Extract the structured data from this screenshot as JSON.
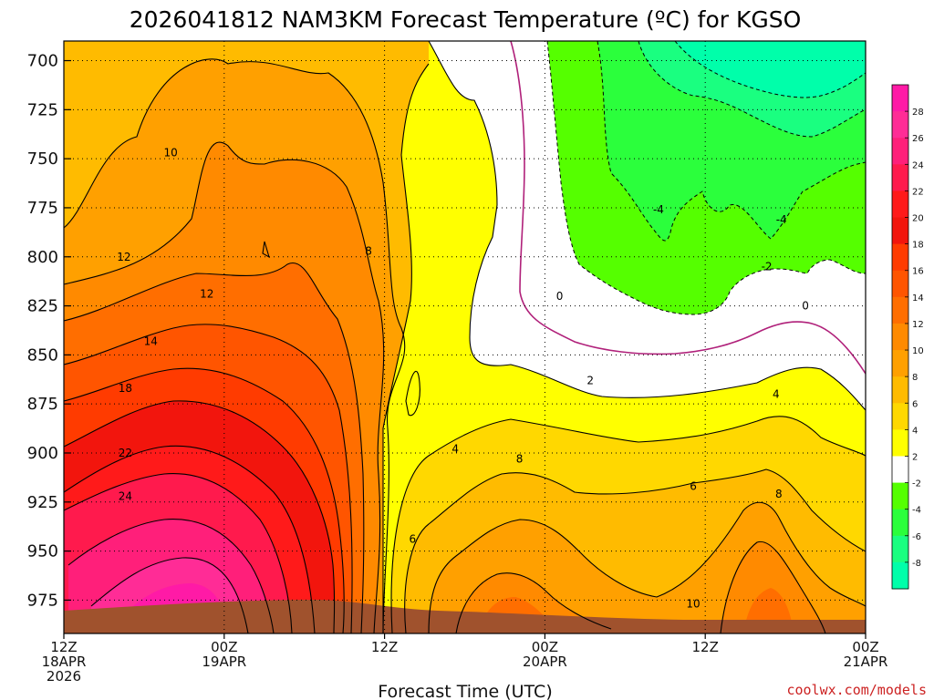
{
  "chart_data": {
    "type": "heatmap",
    "title": "2026041812 NAM3KM Forecast Temperature (ºC) for KGSO",
    "xlabel": "Forecast Time (UTC)",
    "ylabel": "",
    "credit": "coolwx.com/models",
    "credit_color": "#cc2222",
    "y_axis": {
      "unit": "hPa",
      "range": [
        690,
        992
      ],
      "ticks": [
        "700",
        "725",
        "750",
        "775",
        "800",
        "825",
        "850",
        "875",
        "900",
        "925",
        "950",
        "975"
      ]
    },
    "x_axis": {
      "unit": "forecast hours",
      "range": [
        0,
        60
      ],
      "ticks": [
        {
          "hour": 0,
          "lines": [
            "12Z",
            "18APR",
            "2026"
          ]
        },
        {
          "hour": 12,
          "lines": [
            "00Z",
            "19APR"
          ]
        },
        {
          "hour": 24,
          "lines": [
            "12Z"
          ]
        },
        {
          "hour": 36,
          "lines": [
            "00Z",
            "20APR"
          ]
        },
        {
          "hour": 48,
          "lines": [
            "12Z"
          ]
        },
        {
          "hour": 60,
          "lines": [
            "00Z",
            "21APR"
          ]
        }
      ]
    },
    "colorbar": {
      "labels": [
        "28",
        "26",
        "24",
        "22",
        "20",
        "18",
        "16",
        "14",
        "12",
        "10",
        "8",
        "6",
        "4",
        "2",
        "-2",
        "-4",
        "-6",
        "-8"
      ],
      "bands": [
        {
          "range": [
            28,
            30
          ],
          "color": "#ff1aa6"
        },
        {
          "range": [
            26,
            28
          ],
          "color": "#ff2c96"
        },
        {
          "range": [
            24,
            26
          ],
          "color": "#ff1f7a"
        },
        {
          "range": [
            22,
            24
          ],
          "color": "#ff1a4d"
        },
        {
          "range": [
            20,
            22
          ],
          "color": "#ff1a1a"
        },
        {
          "range": [
            18,
            20
          ],
          "color": "#f2150d"
        },
        {
          "range": [
            16,
            18
          ],
          "color": "#ff3b00"
        },
        {
          "range": [
            14,
            16
          ],
          "color": "#ff5500"
        },
        {
          "range": [
            12,
            14
          ],
          "color": "#ff6e00"
        },
        {
          "range": [
            10,
            12
          ],
          "color": "#ff8a00"
        },
        {
          "range": [
            8,
            10
          ],
          "color": "#ffa000"
        },
        {
          "range": [
            6,
            8
          ],
          "color": "#ffbb00"
        },
        {
          "range": [
            4,
            6
          ],
          "color": "#ffd800"
        },
        {
          "range": [
            2,
            4
          ],
          "color": "#ffff00"
        },
        {
          "range": [
            -2,
            2
          ],
          "color": "#ffffff"
        },
        {
          "range": [
            -4,
            -2
          ],
          "color": "#55ff00"
        },
        {
          "range": [
            -6,
            -4
          ],
          "color": "#2bff3c"
        },
        {
          "range": [
            -8,
            -6
          ],
          "color": "#1aff80"
        },
        {
          "range": [
            -10,
            -8
          ],
          "color": "#00ffaa"
        }
      ]
    },
    "contour_labels": [
      {
        "text": "10",
        "hour": 8,
        "p": 747
      },
      {
        "text": "12",
        "hour": 4.5,
        "p": 800
      },
      {
        "text": "12",
        "hour": 10.7,
        "p": 819
      },
      {
        "text": "14",
        "hour": 6.5,
        "p": 843
      },
      {
        "text": "18",
        "hour": 4.6,
        "p": 867
      },
      {
        "text": "22",
        "hour": 4.6,
        "p": 900
      },
      {
        "text": "24",
        "hour": 4.6,
        "p": 922
      },
      {
        "text": "8",
        "hour": 22.8,
        "p": 797
      },
      {
        "text": "4",
        "hour": 29.3,
        "p": 898
      },
      {
        "text": "6",
        "hour": 26.1,
        "p": 944
      },
      {
        "text": "8",
        "hour": 34.1,
        "p": 903
      },
      {
        "text": "6",
        "hour": 47.1,
        "p": 917
      },
      {
        "text": "8",
        "hour": 53.5,
        "p": 921
      },
      {
        "text": "10",
        "hour": 47.1,
        "p": 977
      },
      {
        "text": "2",
        "hour": 39.4,
        "p": 863
      },
      {
        "text": "4",
        "hour": 53.3,
        "p": 870
      },
      {
        "text": "0",
        "hour": 37.1,
        "p": 820
      },
      {
        "text": "0",
        "hour": 55.5,
        "p": 825
      },
      {
        "text": "-4",
        "hour": 44.5,
        "p": 776
      },
      {
        "text": "-4",
        "hour": 53.7,
        "p": 781
      },
      {
        "text": "-2",
        "hour": 52.6,
        "p": 805
      }
    ]
  }
}
